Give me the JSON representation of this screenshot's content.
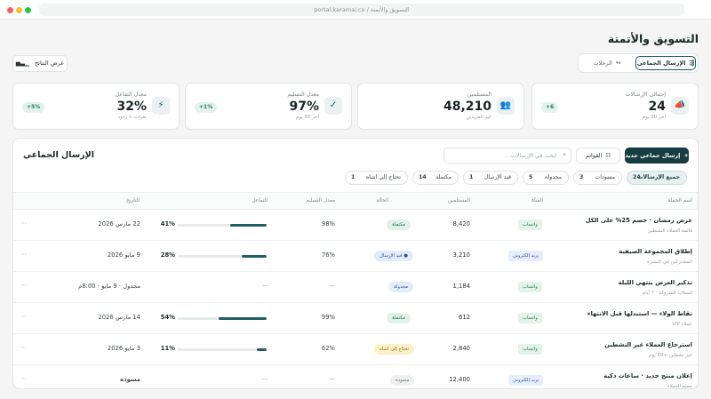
{
  "browser": {
    "url": "portal.karamai.co / التسويق والأتمتة",
    "dots": [
      {
        "name": "close",
        "color": "#ff5f57"
      },
      {
        "name": "minimize",
        "color": "#febc2e"
      },
      {
        "name": "maximize",
        "color": "#28c840"
      }
    ]
  },
  "header": {
    "title": "التسويق والأتمتة",
    "tabs": [
      {
        "label": "الإرسال الجماعي",
        "icon": "broadcast-icon",
        "active": true
      },
      {
        "label": "الرحلات",
        "icon": "journey-icon",
        "active": false
      }
    ],
    "results_button": "عرض النتائج"
  },
  "kpis": [
    {
      "label": "إجمالي الإرسالات",
      "value": "24",
      "sub": "آخر 90 يوم",
      "badge": "+6",
      "icon": "megaphone-icon"
    },
    {
      "label": "المستلمين",
      "value": "48,210",
      "sub": "غير الفريدين",
      "badge": "",
      "icon": "users-icon"
    },
    {
      "label": "معدل التسليم",
      "value": "97%",
      "sub": "آخر 30 يوم",
      "badge": "+1%",
      "icon": "check-circle-icon"
    },
    {
      "label": "معدل التفاعل",
      "value": "32%",
      "sub": "نقرات + ردود",
      "badge": "+5%",
      "icon": "lightning-icon"
    }
  ],
  "panel": {
    "title": "الإرسال الجماعي",
    "new_button": "إرسال جماعي جديد",
    "lists_button": "القوائم",
    "search_placeholder": "ابحث في الإرسالات...",
    "filters": [
      {
        "label": "جميع الإرسالات",
        "count": "24",
        "active": true
      },
      {
        "label": "مسودات",
        "count": "3",
        "active": false
      },
      {
        "label": "مجدولة",
        "count": "5",
        "active": false
      },
      {
        "label": "قيد الإرسال",
        "count": "1",
        "active": false
      },
      {
        "label": "مكتملة",
        "count": "14",
        "active": false
      },
      {
        "label": "تحتاج إلى انتباه",
        "count": "1",
        "active": false
      }
    ],
    "columns": {
      "name": "اسم الحملة",
      "channel": "القناة",
      "recipients": "المستلمين",
      "status": "الحالة",
      "delivery": "معدل التسليم",
      "engagement": "التفاعل",
      "date": "التاريخ"
    },
    "rows": [
      {
        "name": "عرض رمضان · خصم 25% على الكل",
        "sub": "قائمة العملاء النشطين",
        "channel": "واتساب",
        "recipients": "8,420",
        "status": "مكتملة",
        "delivery": "98%",
        "engagement": "41%",
        "engagement_pct": 41,
        "date": "22 مارس 2026"
      },
      {
        "name": "إطلاق المجموعة الصيفية",
        "sub": "المشتركين في النشرة",
        "channel": "بريد إلكتروني",
        "recipients": "3,210",
        "status": "قيد الإرسال",
        "delivery": "76%",
        "engagement": "28%",
        "engagement_pct": 28,
        "date": "9 مايو 2026"
      },
      {
        "name": "تذكير العرض ينتهي الليلة",
        "sub": "السلات المتروكة · 7 أيام",
        "channel": "واتساب",
        "recipients": "1,184",
        "status": "مجدولة",
        "delivery": "—",
        "engagement": "—",
        "engagement_pct": null,
        "date": "مجدول · 9 مايو · 8:00م"
      },
      {
        "name": "نقاط الولاء — استبدلها قبل الانتهاء",
        "sub": "عملاء VIP",
        "channel": "واتساب",
        "recipients": "612",
        "status": "مكتملة",
        "delivery": "99%",
        "engagement": "54%",
        "engagement_pct": 54,
        "date": "14 مارس 2026"
      },
      {
        "name": "استرجاع العملاء غير النشطين",
        "sub": "غير نشطين +60 يوم",
        "channel": "واتساب",
        "recipients": "2,840",
        "status": "تحتاج إلى انتباه",
        "delivery": "62%",
        "engagement": "11%",
        "engagement_pct": 11,
        "date": "3 مايو 2026"
      },
      {
        "name": "إعلان منتج جديد · ساعات ذكية",
        "sub": "جميع العملاء",
        "channel": "بريد إلكتروني",
        "recipients": "12,400",
        "status": "مسودة",
        "delivery": "—",
        "engagement": "—",
        "engagement_pct": null,
        "date": "مسودة"
      }
    ]
  },
  "colors": {
    "accent": "#173c41",
    "bar": "#1f5e63",
    "status_completed": "#dff1e8",
    "status_sending": "#e3ecfb",
    "status_scheduled": "#e4eefb",
    "status_attention": "#fbf0c8",
    "status_draft": "#eef0ef",
    "channel_whatsapp": "#e2f3e9",
    "channel_email": "#e6eefb"
  }
}
